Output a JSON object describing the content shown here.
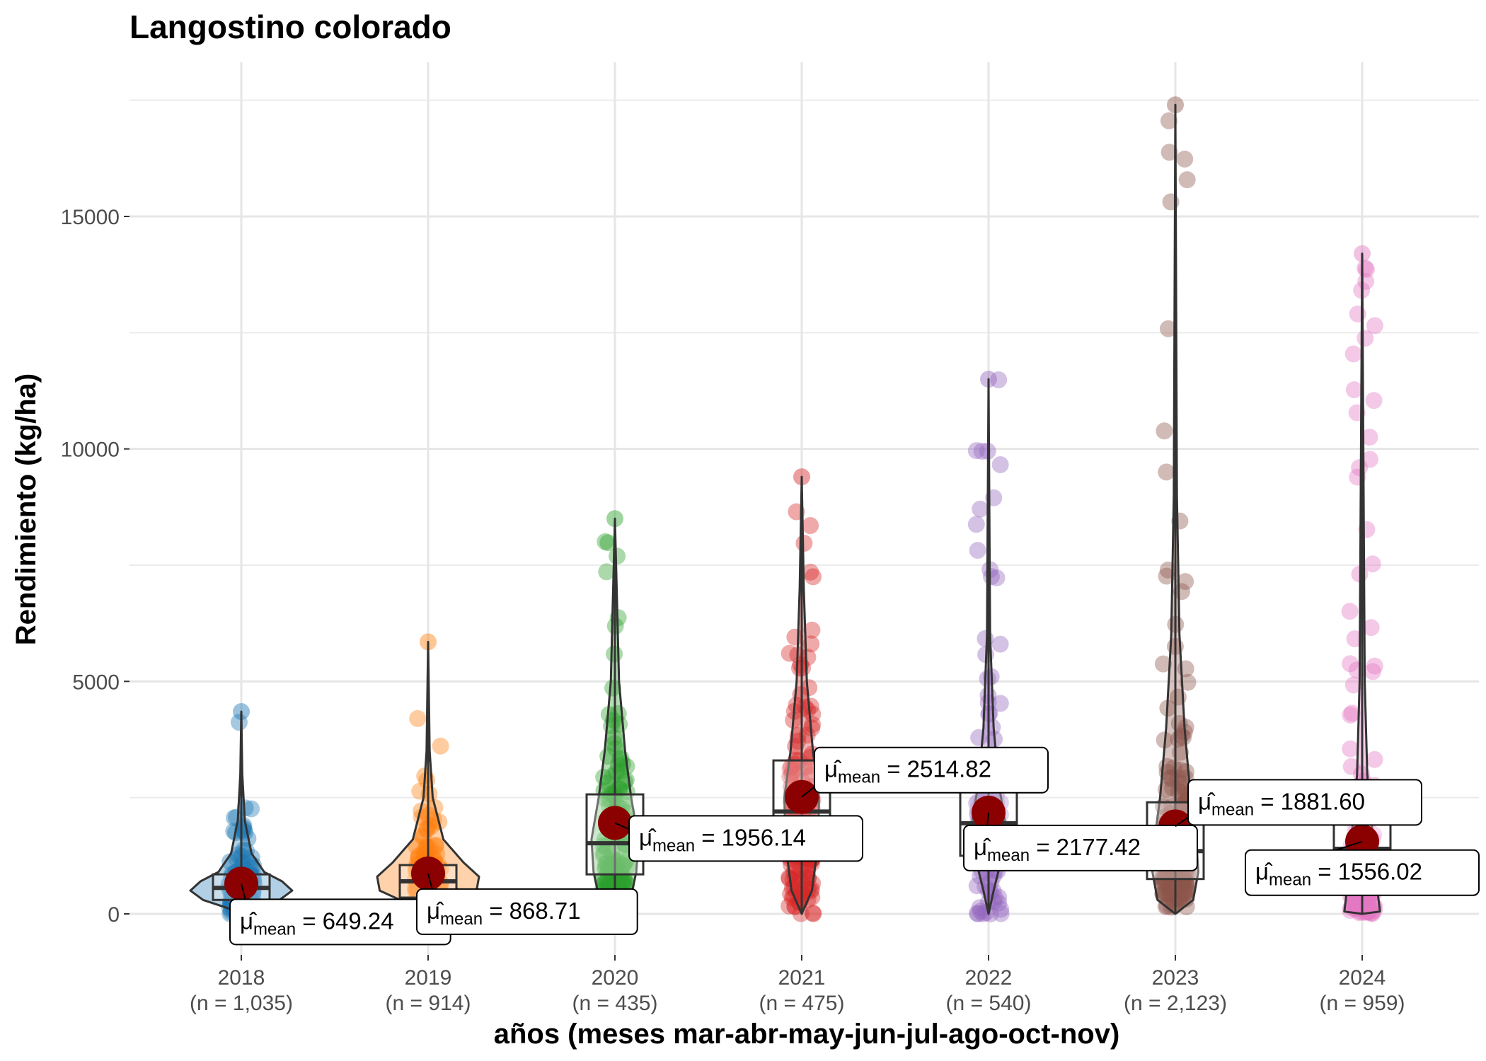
{
  "chart_data": {
    "type": "violin",
    "title": "Langostino colorado",
    "xlabel": "años (meses mar-abr-may-jun-jul-ago-oct-nov)",
    "ylabel": "Rendimiento (kg/ha)",
    "ylim": [
      -850,
      17800
    ],
    "yticks": [
      0,
      5000,
      10000,
      15000
    ],
    "grid": true,
    "legend": "none",
    "mean_symbol": "μ̂",
    "mean_subscript": "mean",
    "mean_color": "#8b0000",
    "groups": [
      {
        "category": "2018",
        "n_label": "(n = 1,035)",
        "mean": 649.24,
        "mean_label": "649.24",
        "color": "#1f77b4",
        "q1": 300,
        "median": 560,
        "q3": 850,
        "whisker_low": 0,
        "whisker_high": 4350,
        "max": 4350,
        "violin": [
          [
            0,
            0
          ],
          [
            100,
            0.2
          ],
          [
            300,
            0.75
          ],
          [
            500,
            1.0
          ],
          [
            700,
            0.8
          ],
          [
            900,
            0.45
          ],
          [
            1300,
            0.2
          ],
          [
            2000,
            0.07
          ],
          [
            3000,
            0.02
          ],
          [
            4350,
            0
          ]
        ],
        "label_pos": "below-right"
      },
      {
        "category": "2019",
        "n_label": "(n = 914)",
        "mean": 868.71,
        "mean_label": "868.71",
        "color": "#ff7f0e",
        "q1": 350,
        "median": 700,
        "q3": 1050,
        "whisker_low": 0,
        "whisker_high": 5850,
        "max": 5850,
        "violin": [
          [
            0,
            0
          ],
          [
            200,
            0.35
          ],
          [
            500,
            0.95
          ],
          [
            800,
            1.0
          ],
          [
            1100,
            0.7
          ],
          [
            1600,
            0.3
          ],
          [
            2500,
            0.09
          ],
          [
            3500,
            0.03
          ],
          [
            5850,
            0
          ]
        ],
        "label_pos": "below-right"
      },
      {
        "category": "2020",
        "n_label": "(n = 435)",
        "mean": 1956.14,
        "mean_label": "1956.14",
        "color": "#2ca02c",
        "q1": 850,
        "median": 1520,
        "q3": 2570,
        "whisker_low": 0,
        "whisker_high": 8500,
        "max": 8500,
        "violin": [
          [
            0,
            0
          ],
          [
            300,
            0.3
          ],
          [
            900,
            0.42
          ],
          [
            1600,
            0.46
          ],
          [
            2500,
            0.32
          ],
          [
            3500,
            0.2
          ],
          [
            5000,
            0.08
          ],
          [
            8500,
            0
          ]
        ],
        "label_pos": "right"
      },
      {
        "category": "2021",
        "n_label": "(n = 475)",
        "mean": 2514.82,
        "mean_label": "2514.82",
        "color": "#d62728",
        "q1": 1350,
        "median": 2200,
        "q3": 3300,
        "whisker_low": 0,
        "whisker_high": 9400,
        "max": 9400,
        "violin": [
          [
            0,
            0
          ],
          [
            500,
            0.2
          ],
          [
            1500,
            0.32
          ],
          [
            2500,
            0.34
          ],
          [
            3500,
            0.22
          ],
          [
            5000,
            0.1
          ],
          [
            7000,
            0.04
          ],
          [
            9400,
            0
          ]
        ],
        "label_pos": "above-right"
      },
      {
        "category": "2022",
        "n_label": "(n = 540)",
        "mean": 2177.42,
        "mean_label": "2177.42",
        "color": "#9467bd",
        "q1": 1250,
        "median": 1950,
        "q3": 2700,
        "whisker_low": 0,
        "whisker_high": 11500,
        "max": 11500,
        "violin": [
          [
            0,
            0
          ],
          [
            500,
            0.1
          ],
          [
            1300,
            0.28
          ],
          [
            2000,
            0.32
          ],
          [
            2800,
            0.2
          ],
          [
            4000,
            0.1
          ],
          [
            6000,
            0.03
          ],
          [
            11500,
            0
          ]
        ],
        "label_pos": "below"
      },
      {
        "category": "2023",
        "n_label": "(n = 2,123)",
        "mean": 1881.6,
        "mean_label": "1881.60",
        "color": "#8c564b",
        "q1": 750,
        "median": 1350,
        "q3": 2400,
        "whisker_low": 0,
        "whisker_high": 17400,
        "max": 17400,
        "violin": [
          [
            0,
            0
          ],
          [
            300,
            0.35
          ],
          [
            900,
            0.45
          ],
          [
            1500,
            0.42
          ],
          [
            2500,
            0.3
          ],
          [
            4000,
            0.18
          ],
          [
            6000,
            0.08
          ],
          [
            9000,
            0.03
          ],
          [
            17400,
            0
          ]
        ],
        "label_pos": "above-right"
      },
      {
        "category": "2024",
        "n_label": "(n = 959)",
        "mean": 1556.02,
        "mean_label": "1556.02",
        "color": "#e377c2",
        "q1": 800,
        "median": 1400,
        "q3": 2200,
        "whisker_low": 0,
        "whisker_high": 14200,
        "max": 14200,
        "violin": [
          [
            0,
            0
          ],
          [
            50,
            0.35
          ],
          [
            500,
            0.3
          ],
          [
            1200,
            0.24
          ],
          [
            2000,
            0.18
          ],
          [
            3000,
            0.1
          ],
          [
            5000,
            0.05
          ],
          [
            14200,
            0
          ]
        ],
        "label_pos": "below"
      }
    ]
  }
}
